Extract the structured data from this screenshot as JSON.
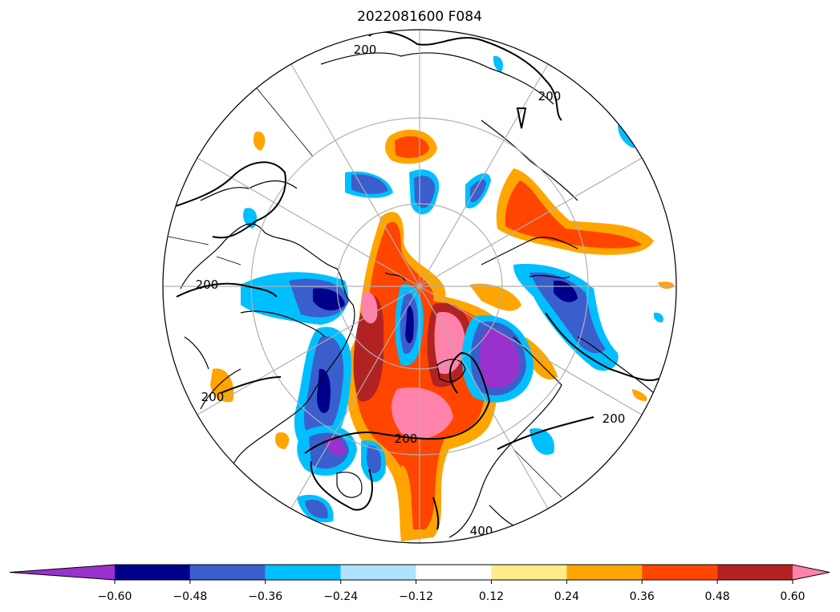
{
  "figure": {
    "title": "2022081600 F084",
    "projection": "north-polar-stereographic",
    "contour_labels": [
      "200",
      "200",
      "200",
      "200",
      "200",
      "400",
      "200"
    ],
    "colorbar": {
      "orientation": "horizontal",
      "extend": "both",
      "boundaries": [
        -0.72,
        -0.6,
        -0.48,
        -0.36,
        -0.24,
        -0.12,
        0.12,
        0.24,
        0.36,
        0.48,
        0.6,
        0.72
      ],
      "colors": [
        "#9932cc",
        "#00008b",
        "#3a5fcd",
        "#00bfff",
        "#b0e2ff",
        "#ffffff",
        "#ffec8b",
        "#ffa500",
        "#ff4500",
        "#b22222",
        "#ff82ab"
      ],
      "tick_labels": [
        "−0.60",
        "−0.48",
        "−0.36",
        "−0.24",
        "−0.12",
        "0.12",
        "0.24",
        "0.36",
        "0.48",
        "0.60"
      ]
    }
  }
}
